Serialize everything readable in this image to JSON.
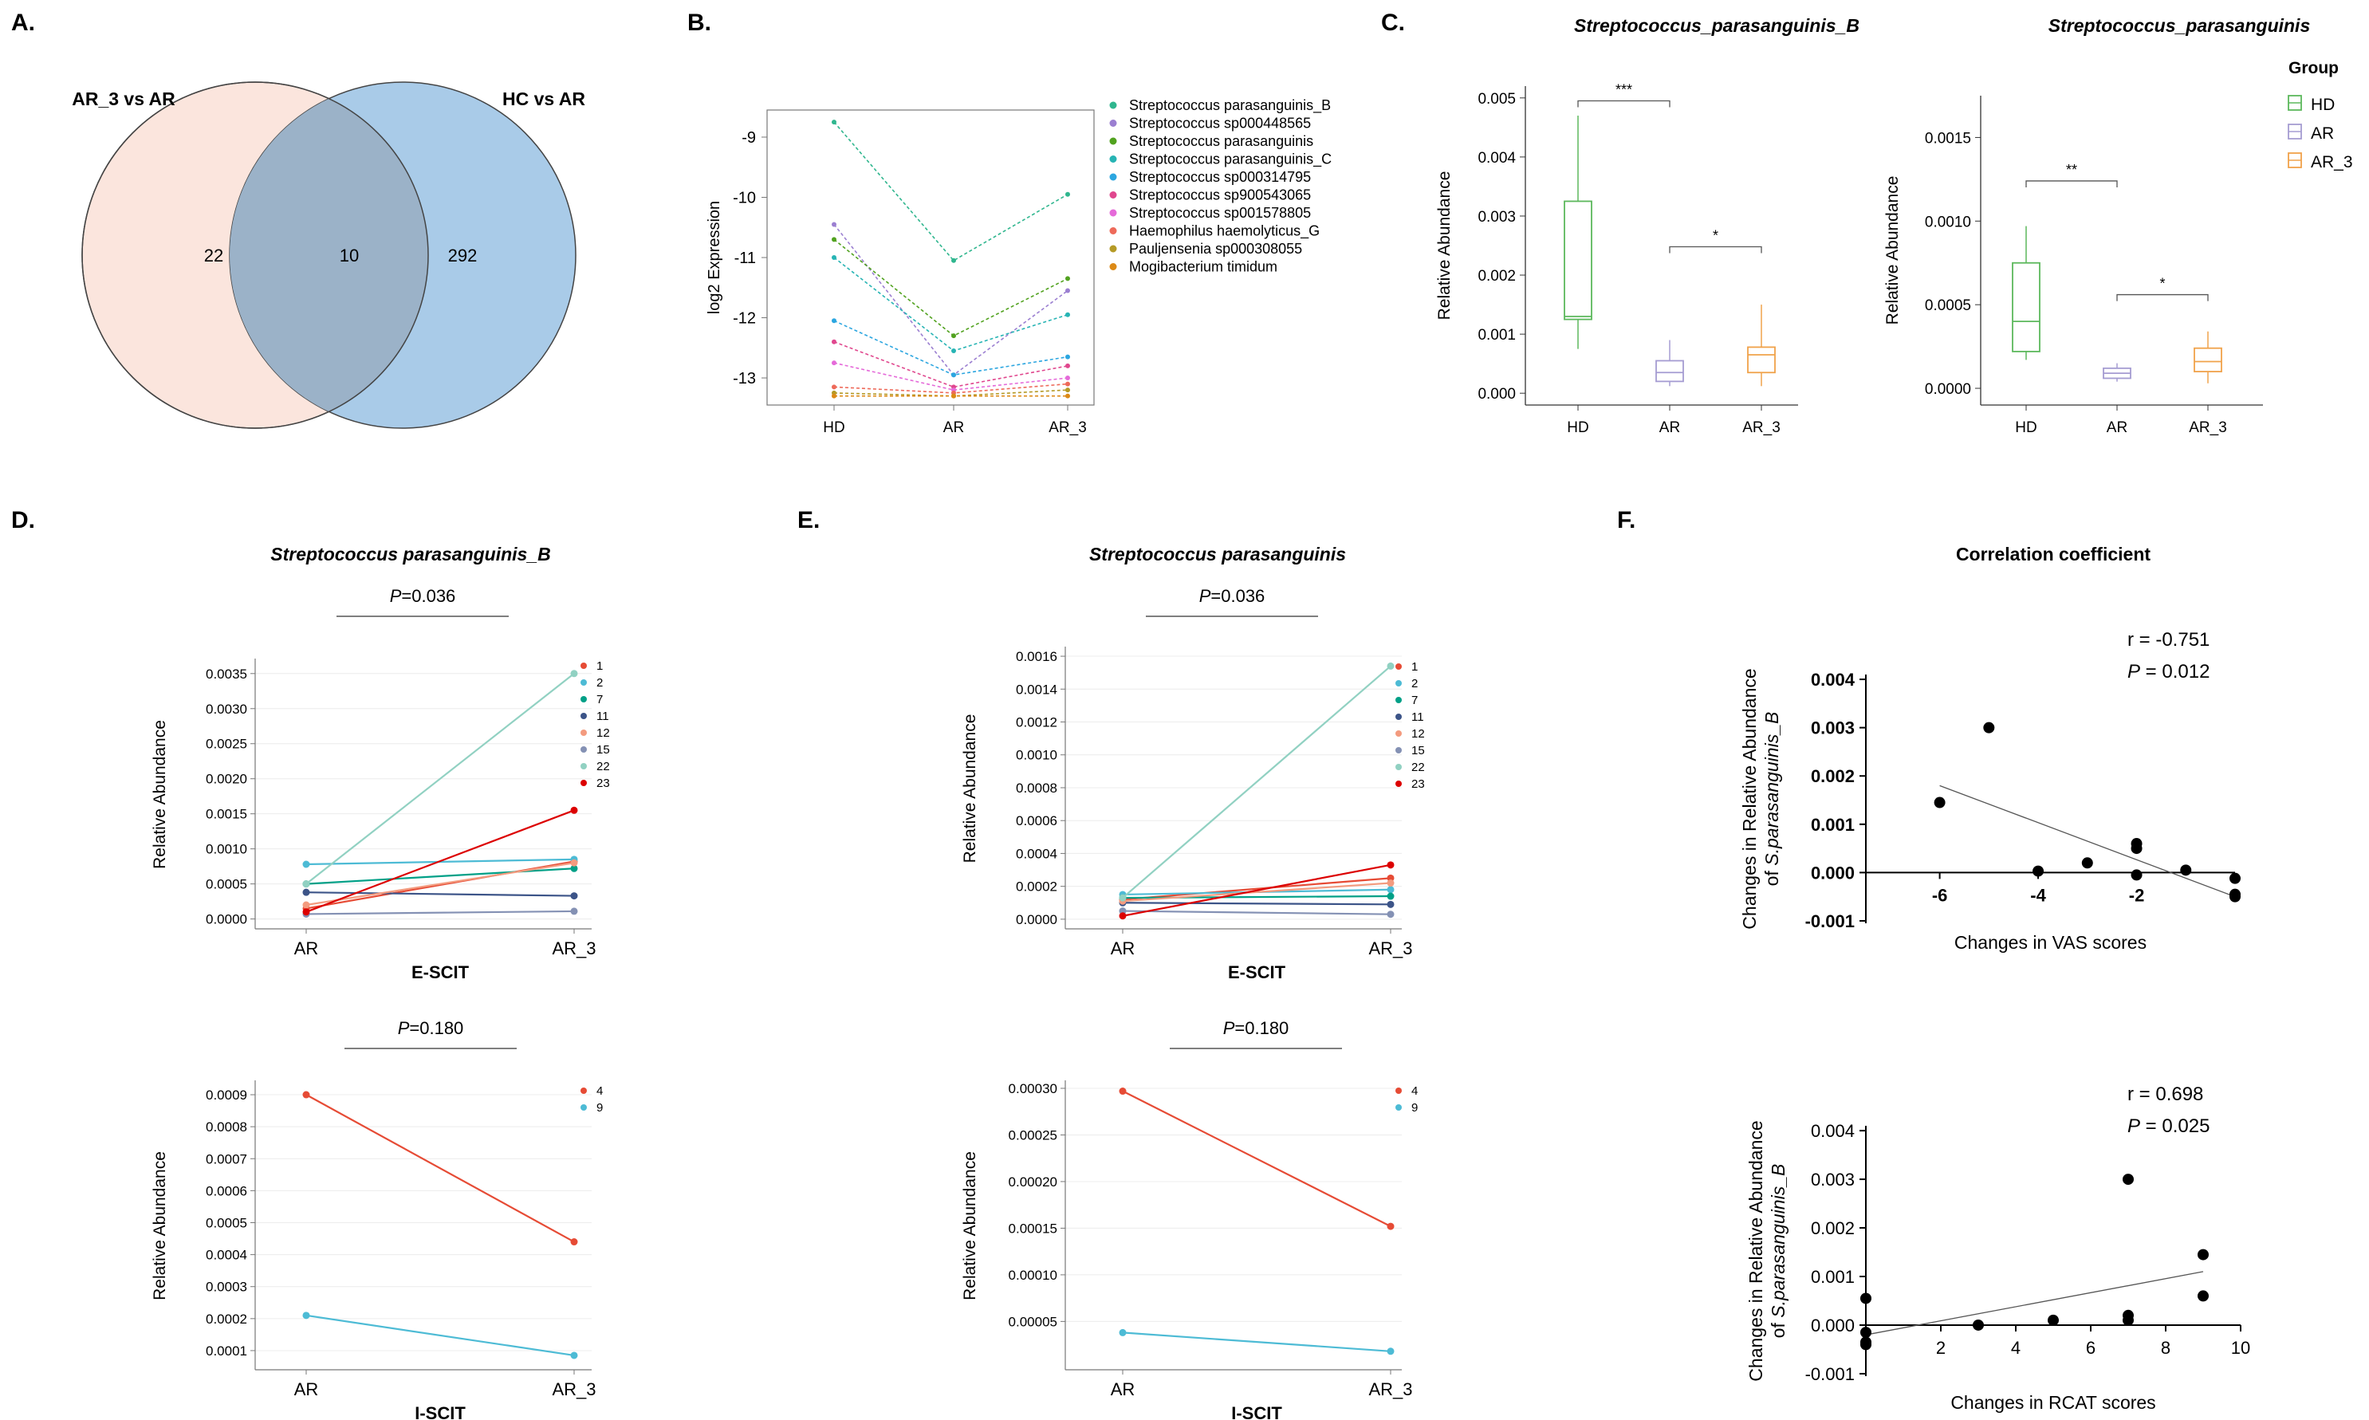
{
  "panel_labels": {
    "a": "A.",
    "b": "B.",
    "c": "C.",
    "d": "D.",
    "e": "E.",
    "f": "F."
  },
  "chart_data": [
    {
      "id": "A",
      "type": "venn",
      "sets": [
        {
          "name": "AR_3 vs AR",
          "only": "22",
          "color": "#fbe5dd"
        },
        {
          "name": "HC vs AR",
          "only": "292",
          "color": "#a9cbe8"
        }
      ],
      "intersection": "10",
      "overlap_color": "#9bb2c8"
    },
    {
      "id": "B",
      "type": "line",
      "categories": [
        "HD",
        "AR",
        "AR_3"
      ],
      "ylabel": "log2 Expression",
      "ylim": [
        -13.45,
        -8.55
      ],
      "yticks": [
        "-9",
        "-10",
        "-11",
        "-12",
        "-13"
      ],
      "series": [
        {
          "name": "Streptococcus parasanguinis_B",
          "color": "#2fb68e",
          "values": [
            -8.75,
            -11.05,
            -9.95
          ]
        },
        {
          "name": "Streptococcus sp000448565",
          "color": "#9b7fd1",
          "values": [
            -10.45,
            -12.95,
            -11.55
          ]
        },
        {
          "name": "Streptococcus parasanguinis",
          "color": "#51a21f",
          "values": [
            -10.7,
            -12.3,
            -11.35
          ]
        },
        {
          "name": "Streptococcus parasanguinis_C",
          "color": "#27b4b4",
          "values": [
            -11.0,
            -12.55,
            -11.95
          ]
        },
        {
          "name": "Streptococcus sp000314795",
          "color": "#2ca6e0",
          "values": [
            -12.05,
            -12.95,
            -12.65
          ]
        },
        {
          "name": "Streptococcus sp900543065",
          "color": "#e0478e",
          "values": [
            -12.4,
            -13.15,
            -12.8
          ]
        },
        {
          "name": "Streptococcus sp001578805",
          "color": "#e56ad9",
          "values": [
            -12.75,
            -13.2,
            -13.0
          ]
        },
        {
          "name": "Haemophilus haemolyticus_G",
          "color": "#ee6a5a",
          "values": [
            -13.15,
            -13.25,
            -13.1
          ]
        },
        {
          "name": "Pauljensenia sp000308055",
          "color": "#b59a26",
          "values": [
            -13.25,
            -13.3,
            -13.2
          ]
        },
        {
          "name": "Mogibacterium timidum",
          "color": "#dc8a17",
          "values": [
            -13.3,
            -13.3,
            -13.3
          ]
        }
      ]
    },
    {
      "id": "C1",
      "type": "box",
      "title": "Streptococcus_parasanguinis_B",
      "ylabel": "Relative Abundance",
      "ylim": [
        -0.0002,
        0.0052
      ],
      "yticks": [
        "0.000",
        "0.001",
        "0.002",
        "0.003",
        "0.004",
        "0.005"
      ],
      "categories": [
        "HD",
        "AR",
        "AR_3"
      ],
      "boxes": [
        {
          "group": "HD",
          "min": 0.00075,
          "q1": 0.00125,
          "median": 0.0013,
          "q3": 0.00325,
          "max": 0.0047
        },
        {
          "group": "AR",
          "min": 0.00012,
          "q1": 0.0002,
          "median": 0.00035,
          "q3": 0.00055,
          "max": 0.0009
        },
        {
          "group": "AR_3",
          "min": 0.00012,
          "q1": 0.00035,
          "median": 0.00065,
          "q3": 0.00078,
          "max": 0.0015
        }
      ],
      "significance": [
        {
          "from": "HD",
          "to": "AR",
          "label": "***",
          "y": 0.00495
        },
        {
          "from": "AR",
          "to": "AR_3",
          "label": "*",
          "y": 0.00248
        }
      ]
    },
    {
      "id": "C2",
      "type": "box",
      "title": "Streptococcus_parasanguinis",
      "ylabel": "Relative Abundance",
      "ylim": [
        -0.0001,
        0.00175
      ],
      "yticks": [
        "0.0000",
        "0.0005",
        "0.0010",
        "0.0015"
      ],
      "categories": [
        "HD",
        "AR",
        "AR_3"
      ],
      "boxes": [
        {
          "group": "HD",
          "min": 0.00017,
          "q1": 0.00022,
          "median": 0.0004,
          "q3": 0.00075,
          "max": 0.00097
        },
        {
          "group": "AR",
          "min": 4e-05,
          "q1": 6e-05,
          "median": 9e-05,
          "q3": 0.00012,
          "max": 0.00015
        },
        {
          "group": "AR_3",
          "min": 3e-05,
          "q1": 0.0001,
          "median": 0.00016,
          "q3": 0.00024,
          "max": 0.00034
        }
      ],
      "significance": [
        {
          "from": "HD",
          "to": "AR",
          "label": "**",
          "y": 0.00124
        },
        {
          "from": "AR",
          "to": "AR_3",
          "label": "*",
          "y": 0.00056
        }
      ],
      "legend": {
        "title": "Group",
        "entries": [
          {
            "name": "HD",
            "color": "#5cb85c"
          },
          {
            "name": "AR",
            "color": "#a59cd2"
          },
          {
            "name": "AR_3",
            "color": "#f0a24a"
          }
        ]
      }
    },
    {
      "id": "D1",
      "type": "line",
      "title": "Streptococcus parasanguinis_B",
      "p_label": "P",
      "p_value": "=0.036",
      "xlabel": "E-SCIT",
      "ylabel": "Relative Abundance",
      "categories": [
        "AR",
        "AR_3"
      ],
      "ylim": [
        -5e-05,
        0.0036
      ],
      "yticks": [
        "0.0000",
        "0.0005",
        "0.0010",
        "0.0015",
        "0.0020",
        "0.0025",
        "0.0030",
        "0.0035"
      ],
      "series": [
        {
          "name": "1",
          "color": "#e64b35",
          "values": [
            0.00015,
            0.00082
          ]
        },
        {
          "name": "2",
          "color": "#4dbbd5",
          "values": [
            0.00078,
            0.00085
          ]
        },
        {
          "name": "7",
          "color": "#00a087",
          "values": [
            0.0005,
            0.00072
          ]
        },
        {
          "name": "11",
          "color": "#3c5488",
          "values": [
            0.00038,
            0.00033
          ]
        },
        {
          "name": "12",
          "color": "#f39b7f",
          "values": [
            0.0002,
            0.0008
          ]
        },
        {
          "name": "15",
          "color": "#8491b4",
          "values": [
            7e-05,
            0.00011
          ]
        },
        {
          "name": "22",
          "color": "#91d1c2",
          "values": [
            0.0005,
            0.0035
          ]
        },
        {
          "name": "23",
          "color": "#dc0000",
          "values": [
            0.0001,
            0.00155
          ]
        }
      ]
    },
    {
      "id": "D2",
      "type": "line",
      "p_label": "P",
      "p_value": "=0.180",
      "xlabel": "I-SCIT",
      "ylabel": "Relative Abundance",
      "categories": [
        "AR",
        "AR_3"
      ],
      "ylim": [
        6e-05,
        0.00092
      ],
      "yticks": [
        "0.0001",
        "0.0002",
        "0.0003",
        "0.0004",
        "0.0005",
        "0.0006",
        "0.0007",
        "0.0008",
        "0.0009"
      ],
      "series": [
        {
          "name": "4",
          "color": "#e64b35",
          "values": [
            0.0009,
            0.00044
          ]
        },
        {
          "name": "9",
          "color": "#4dbbd5",
          "values": [
            0.00021,
            8.5e-05
          ]
        }
      ]
    },
    {
      "id": "E1",
      "type": "line",
      "title": "Streptococcus parasanguinis",
      "p_label": "P",
      "p_value": "=0.036",
      "xlabel": "E-SCIT",
      "ylabel": "Relative Abundance",
      "categories": [
        "AR",
        "AR_3"
      ],
      "ylim": [
        -2e-05,
        0.00161
      ],
      "yticks": [
        "0.0000",
        "0.0002",
        "0.0004",
        "0.0006",
        "0.0008",
        "0.0010",
        "0.0012",
        "0.0014",
        "0.0016"
      ],
      "series": [
        {
          "name": "1",
          "color": "#e64b35",
          "values": [
            0.00012,
            0.00025
          ]
        },
        {
          "name": "2",
          "color": "#4dbbd5",
          "values": [
            0.00015,
            0.00018
          ]
        },
        {
          "name": "7",
          "color": "#00a087",
          "values": [
            0.00013,
            0.00014
          ]
        },
        {
          "name": "11",
          "color": "#3c5488",
          "values": [
            0.0001,
            9e-05
          ]
        },
        {
          "name": "12",
          "color": "#f39b7f",
          "values": [
            0.00011,
            0.00022
          ]
        },
        {
          "name": "15",
          "color": "#8491b4",
          "values": [
            5e-05,
            3e-05
          ]
        },
        {
          "name": "22",
          "color": "#91d1c2",
          "values": [
            0.00013,
            0.00154
          ]
        },
        {
          "name": "23",
          "color": "#dc0000",
          "values": [
            2e-05,
            0.00033
          ]
        }
      ]
    },
    {
      "id": "E2",
      "type": "line",
      "p_label": "P",
      "p_value": "=0.180",
      "xlabel": "I-SCIT",
      "ylabel": "Relative Abundance",
      "categories": [
        "AR",
        "AR_3"
      ],
      "ylim": [
        5e-06,
        0.0003
      ],
      "yticks": [
        "0.00005",
        "0.00010",
        "0.00015",
        "0.00020",
        "0.00025",
        "0.00030"
      ],
      "series": [
        {
          "name": "4",
          "color": "#e64b35",
          "values": [
            0.000297,
            0.000152
          ]
        },
        {
          "name": "9",
          "color": "#4dbbd5",
          "values": [
            3.8e-05,
            1.8e-05
          ]
        }
      ]
    },
    {
      "id": "F1",
      "type": "scatter",
      "title": "Correlation coefficient",
      "r_text": "r = -0.751",
      "p_label": "P",
      "p_value": " = 0.012",
      "xlabel": "Changes in VAS scores",
      "ylabel_line1": "Changes in Relative Abundance",
      "ylabel_line2_prefix": "of ",
      "ylabel_line2_italic": "S.parasanguinis_B",
      "xlim": [
        -7.5,
        0
      ],
      "ylim": [
        -0.00105,
        0.0041
      ],
      "xticks": [
        -6,
        -4,
        -2
      ],
      "yticks": [
        "-0.001",
        "0.000",
        "0.001",
        "0.002",
        "0.003",
        "0.004"
      ],
      "points": [
        {
          "x": -6,
          "y": 0.00145
        },
        {
          "x": -5,
          "y": 0.003
        },
        {
          "x": -4,
          "y": 3e-05
        },
        {
          "x": -3,
          "y": 0.0002
        },
        {
          "x": -2,
          "y": 0.0006
        },
        {
          "x": -2,
          "y": 0.0005
        },
        {
          "x": -2,
          "y": -5e-05
        },
        {
          "x": -1,
          "y": 5e-05
        },
        {
          "x": 0,
          "y": -0.00012
        },
        {
          "x": 0,
          "y": -0.00045
        },
        {
          "x": 0,
          "y": -0.0005
        }
      ],
      "fit": [
        {
          "x": -6,
          "y": 0.0018
        },
        {
          "x": 0,
          "y": -0.0005
        }
      ]
    },
    {
      "id": "F2",
      "type": "scatter",
      "r_text": "r = 0.698",
      "p_label": "P",
      "p_value": " = 0.025",
      "xlabel": "Changes in RCAT scores",
      "ylabel_line1": "Changes in Relative Abundance",
      "ylabel_line2_prefix": "of ",
      "ylabel_line2_italic": "S.parasanguinis_B",
      "xlim": [
        0,
        10
      ],
      "ylim": [
        -0.00105,
        0.0041
      ],
      "xticks": [
        2,
        4,
        6,
        8,
        10
      ],
      "yticks": [
        "-0.001",
        "0.000",
        "0.001",
        "0.002",
        "0.003",
        "0.004"
      ],
      "points": [
        {
          "x": 0,
          "y": 0.00055
        },
        {
          "x": 0,
          "y": -0.00015
        },
        {
          "x": 0,
          "y": -0.00035
        },
        {
          "x": 0,
          "y": -0.0004
        },
        {
          "x": 3,
          "y": 0
        },
        {
          "x": 5,
          "y": 0.0001
        },
        {
          "x": 7,
          "y": 0.003
        },
        {
          "x": 7,
          "y": 0.0002
        },
        {
          "x": 7,
          "y": 0.0001
        },
        {
          "x": 9,
          "y": 0.00145
        },
        {
          "x": 9,
          "y": 0.0006
        }
      ],
      "fit": [
        {
          "x": 0,
          "y": -0.0002
        },
        {
          "x": 9,
          "y": 0.0011
        }
      ]
    }
  ]
}
